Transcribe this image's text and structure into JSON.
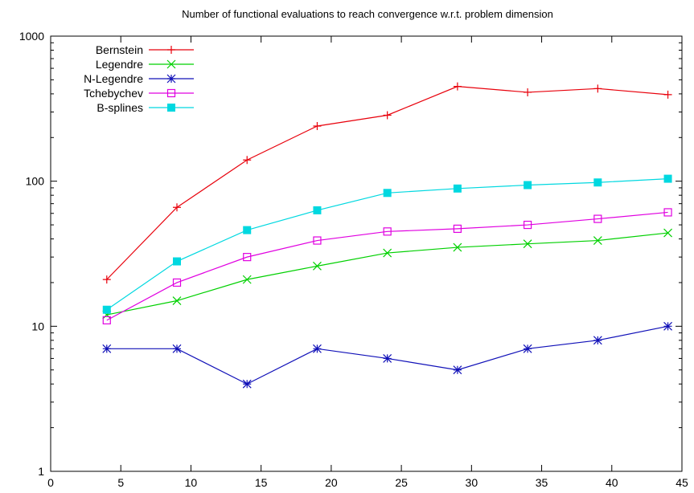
{
  "chart_data": {
    "type": "line",
    "title": "Number of functional evaluations to reach convergence w.r.t. problem dimension",
    "xlabel": "",
    "ylabel": "",
    "x": [
      4,
      9,
      14,
      19,
      24,
      29,
      34,
      39,
      44
    ],
    "xlim": [
      0,
      45
    ],
    "ylim": [
      1,
      1000
    ],
    "yscale": "log",
    "x_ticks": [
      "0",
      "5",
      "10",
      "15",
      "20",
      "25",
      "30",
      "35",
      "40",
      "45"
    ],
    "y_ticks": [
      "1",
      "10",
      "100",
      "1000"
    ],
    "grid": false,
    "legend_position": "top-left",
    "series": [
      {
        "name": "Bernstein",
        "color": "#e8000b",
        "marker": "plus",
        "values": [
          21,
          66,
          140,
          240,
          285,
          450,
          410,
          435,
          395
        ]
      },
      {
        "name": "Legendre",
        "color": "#00d000",
        "marker": "cross",
        "values": [
          12,
          15,
          21,
          26,
          32,
          35,
          37,
          39,
          44
        ]
      },
      {
        "name": "N-Legendre",
        "color": "#1010b8",
        "marker": "star",
        "values": [
          7,
          7,
          4,
          7,
          6,
          5,
          7,
          8,
          10
        ]
      },
      {
        "name": "Tchebychev",
        "color": "#e000e0",
        "marker": "open-square",
        "values": [
          11,
          20,
          30,
          39,
          45,
          47,
          50,
          55,
          61
        ]
      },
      {
        "name": "B-splines",
        "color": "#00d8e0",
        "marker": "filled-square",
        "values": [
          13,
          28,
          46,
          63,
          83,
          89,
          94,
          98,
          104
        ]
      }
    ]
  }
}
